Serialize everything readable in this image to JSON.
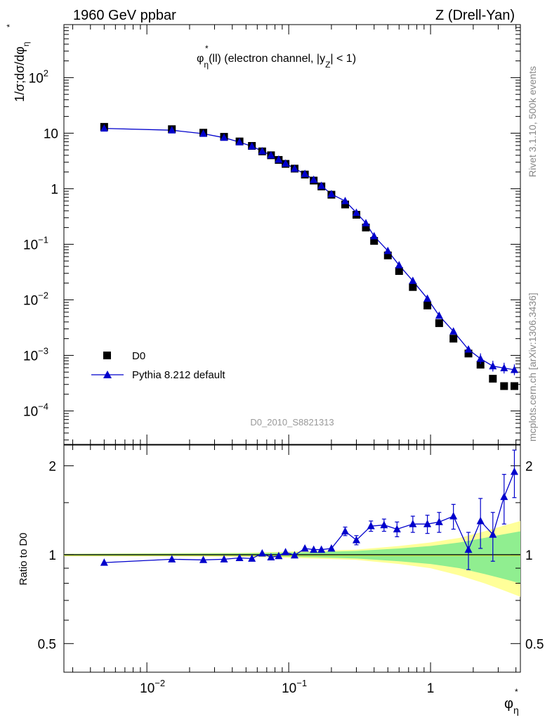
{
  "header": {
    "left": "1960 GeV ppbar",
    "right": "Z (Drell-Yan)"
  },
  "side_labels": {
    "rivet": "Rivet 3.1.10,  500k events",
    "mcplots": "mcplots.cern.ch [arXiv:1306.3436]"
  },
  "watermark": "D0_2010_S8821313",
  "plot_title": {
    "main": "φ",
    "sup": "*",
    "sub": "η",
    "rest": "(ll) (electron channel, |y",
    "sub2": "Z",
    "rest2": "| < 1)"
  },
  "y_label_main": "1/σ;dσ/dφ",
  "y_label_sup": "*",
  "y_label_sub": "η",
  "y_label_ratio": "Ratio to D0",
  "x_label": "φ",
  "x_label_sup": "*",
  "x_label_sub": "η",
  "legend": [
    {
      "name": "D0",
      "marker": "square",
      "color": "#000000"
    },
    {
      "name": "Pythia 8.212 default",
      "marker": "triangle",
      "color": "#0000cc"
    }
  ],
  "colors": {
    "data": "#000000",
    "mc": "#0000cc",
    "band_inner": "#90ee90",
    "band_outer": "#ffff99",
    "ratio_line": "#000000"
  },
  "chart_data": {
    "type": "scatter",
    "x_scale": "log",
    "y_scale": "log",
    "xlim": [
      0.0026,
      4.3
    ],
    "ylim_main": [
      2.5e-05,
      900
    ],
    "ylim_ratio": [
      0.4,
      2.35
    ],
    "x_tick_labels": [
      {
        "v": 0.01,
        "base": "10",
        "exp": "−2"
      },
      {
        "v": 0.1,
        "base": "10",
        "exp": "−1"
      },
      {
        "v": 1,
        "base": "1",
        "exp": ""
      }
    ],
    "y_tick_labels_main": [
      {
        "v": 100,
        "base": "10",
        "exp": "2"
      },
      {
        "v": 10,
        "base": "10",
        "exp": ""
      },
      {
        "v": 1,
        "base": "1",
        "exp": ""
      },
      {
        "v": 0.1,
        "base": "10",
        "exp": "−1"
      },
      {
        "v": 0.01,
        "base": "10",
        "exp": "−2"
      },
      {
        "v": 0.001,
        "base": "10",
        "exp": "−3"
      },
      {
        "v": 0.0001,
        "base": "10",
        "exp": "−4"
      }
    ],
    "y_tick_labels_ratio": [
      {
        "v": 2,
        "text": "2"
      },
      {
        "v": 1,
        "text": "1"
      },
      {
        "v": 0.5,
        "text": "0.5"
      }
    ],
    "x": [
      0.005,
      0.015,
      0.025,
      0.035,
      0.045,
      0.055,
      0.065,
      0.075,
      0.085,
      0.095,
      0.11,
      0.13,
      0.15,
      0.17,
      0.2,
      0.25,
      0.3,
      0.35,
      0.4,
      0.5,
      0.6,
      0.75,
      0.95,
      1.15,
      1.45,
      1.85,
      2.25,
      2.75,
      3.3,
      3.9
    ],
    "series": [
      {
        "name": "D0",
        "values": [
          13.0,
          11.8,
          10.2,
          8.6,
          7.1,
          5.9,
          4.7,
          4.0,
          3.3,
          2.8,
          2.3,
          1.8,
          1.4,
          1.1,
          0.78,
          0.52,
          0.34,
          0.2,
          0.115,
          0.063,
          0.033,
          0.017,
          0.0079,
          0.0038,
          0.002,
          0.00108,
          0.00068,
          0.00038,
          0.00028,
          0.00028
        ]
      },
      {
        "name": "Pythia 8.212 default",
        "values": [
          12.2,
          11.3,
          9.8,
          8.3,
          6.9,
          5.8,
          4.75,
          4.0,
          3.35,
          2.85,
          2.3,
          1.85,
          1.45,
          1.13,
          0.8,
          0.6,
          0.37,
          0.24,
          0.14,
          0.076,
          0.042,
          0.022,
          0.0105,
          0.0052,
          0.0027,
          0.00128,
          0.00087,
          0.00064,
          0.00059,
          0.00055
        ]
      }
    ],
    "ratio": [
      0.94,
      0.965,
      0.96,
      0.965,
      0.975,
      0.97,
      1.01,
      0.98,
      0.99,
      1.02,
      0.995,
      1.05,
      1.04,
      1.04,
      1.05,
      1.2,
      1.12,
      1.25,
      1.26,
      1.22,
      1.27,
      1.27,
      1.29,
      1.35,
      1.04,
      1.3,
      1.17,
      1.57,
      1.91
    ],
    "ratio_x": [
      0.005,
      0.015,
      0.025,
      0.035,
      0.045,
      0.055,
      0.065,
      0.075,
      0.085,
      0.095,
      0.11,
      0.13,
      0.15,
      0.17,
      0.2,
      0.25,
      0.3,
      0.38,
      0.47,
      0.58,
      0.75,
      0.95,
      1.15,
      1.45,
      1.85,
      2.25,
      2.75,
      3.3,
      3.9
    ],
    "ratio_err": [
      0,
      0,
      0,
      0,
      0,
      0,
      0,
      0,
      0,
      0,
      0,
      0,
      0,
      0,
      0,
      0.04,
      0.04,
      0.05,
      0.06,
      0.07,
      0.08,
      0.09,
      0.1,
      0.13,
      0.15,
      0.25,
      0.22,
      0.3,
      0.35
    ],
    "band": [
      {
        "x": 0.0026,
        "lo1": 0.995,
        "hi1": 1.005,
        "lo2": 0.993,
        "hi2": 1.007
      },
      {
        "x": 0.05,
        "lo1": 0.99,
        "hi1": 1.01,
        "lo2": 0.985,
        "hi2": 1.015
      },
      {
        "x": 0.15,
        "lo1": 0.98,
        "hi1": 1.02,
        "lo2": 0.97,
        "hi2": 1.03
      },
      {
        "x": 0.3,
        "lo1": 0.97,
        "hi1": 1.03,
        "lo2": 0.96,
        "hi2": 1.04
      },
      {
        "x": 0.6,
        "lo1": 0.95,
        "hi1": 1.05,
        "lo2": 0.93,
        "hi2": 1.07
      },
      {
        "x": 1.0,
        "lo1": 0.93,
        "hi1": 1.07,
        "lo2": 0.9,
        "hi2": 1.1
      },
      {
        "x": 1.6,
        "lo1": 0.9,
        "hi1": 1.1,
        "lo2": 0.85,
        "hi2": 1.14
      },
      {
        "x": 2.4,
        "lo1": 0.86,
        "hi1": 1.14,
        "lo2": 0.8,
        "hi2": 1.2
      },
      {
        "x": 3.2,
        "lo1": 0.83,
        "hi1": 1.17,
        "lo2": 0.76,
        "hi2": 1.25
      },
      {
        "x": 4.3,
        "lo1": 0.8,
        "hi1": 1.2,
        "lo2": 0.72,
        "hi2": 1.3
      }
    ]
  }
}
